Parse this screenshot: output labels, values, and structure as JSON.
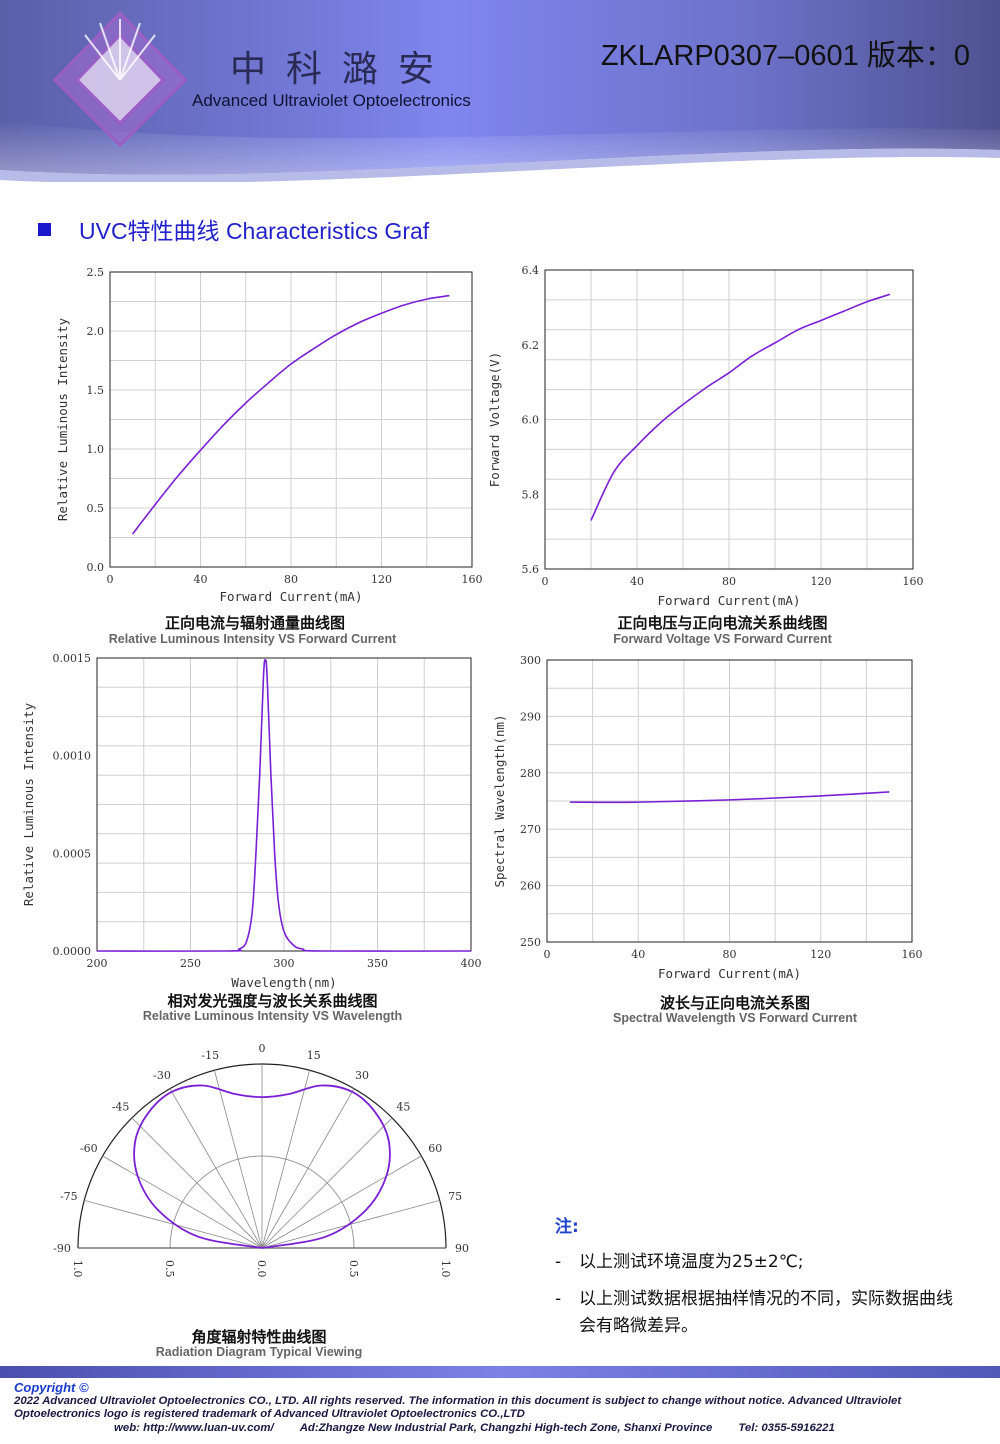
{
  "header": {
    "brand_cn": "中科潞安",
    "brand_en": "Advanced Ultraviolet Optoelectronics",
    "doc_no": "ZKLARP0307–0601 版本：0"
  },
  "section": {
    "title": "UVC特性曲线 Characteristics Graf"
  },
  "colors": {
    "curve": "#7a1fd6",
    "grid": "#d0d0d0",
    "accent": "#1a1acc"
  },
  "charts": {
    "c1": {
      "title_cn": "正向电流与辐射通量曲线图",
      "title_en": "Relative Luminous Intensity VS Forward Current"
    },
    "c2": {
      "title_cn": "正向电压与正向电流关系曲线图",
      "title_en": "Forward Voltage VS Forward Current"
    },
    "c3": {
      "title_cn": "相对发光强度与波长关系曲线图",
      "title_en": "Relative Luminous Intensity VS Wavelength"
    },
    "c4": {
      "title_cn": "波长与正向电流关系图",
      "title_en": "Spectral Wavelength VS Forward Current"
    },
    "c5": {
      "title_cn": "角度辐射特性曲线图",
      "title_en": "Radiation Diagram Typical Viewing"
    }
  },
  "chart_data": [
    {
      "id": "c1",
      "type": "line",
      "xlabel": "Forward Current(mA)",
      "ylabel": "Relative Luminous Intensity",
      "xlim": [
        0,
        160
      ],
      "ylim": [
        0,
        2.5
      ],
      "grid": true,
      "xticks": [
        "0",
        "40",
        "80",
        "120",
        "160"
      ],
      "yticks": [
        "0.0",
        "0.5",
        "1.0",
        "1.5",
        "2.0",
        "2.5"
      ],
      "x": [
        10,
        20,
        30,
        40,
        50,
        60,
        70,
        80,
        90,
        100,
        110,
        120,
        130,
        140,
        150
      ],
      "y": [
        0.28,
        0.53,
        0.77,
        0.99,
        1.2,
        1.39,
        1.56,
        1.72,
        1.85,
        1.97,
        2.07,
        2.15,
        2.22,
        2.27,
        2.3
      ]
    },
    {
      "id": "c2",
      "type": "line",
      "xlabel": "Forward Current(mA)",
      "ylabel": "Forward Voltage(V)",
      "xlim": [
        0,
        160
      ],
      "ylim": [
        5.6,
        6.4
      ],
      "grid": true,
      "xticks": [
        "0",
        "40",
        "80",
        "120",
        "160"
      ],
      "yticks": [
        "5.6",
        "5.8",
        "6.0",
        "6.2",
        "6.4"
      ],
      "x": [
        20,
        30,
        40,
        50,
        60,
        70,
        80,
        90,
        100,
        110,
        120,
        130,
        140,
        150
      ],
      "y": [
        5.73,
        5.86,
        5.93,
        5.99,
        6.04,
        6.085,
        6.125,
        6.17,
        6.205,
        6.24,
        6.265,
        6.29,
        6.315,
        6.335
      ]
    },
    {
      "id": "c3",
      "type": "line",
      "xlabel": "Wavelength(nm)",
      "ylabel": "Relative Luminous Intensity",
      "xlim": [
        200,
        400
      ],
      "ylim": [
        0,
        0.0015
      ],
      "grid": true,
      "xticks": [
        "200",
        "250",
        "300",
        "350",
        "400"
      ],
      "yticks": [
        "0.0000",
        "0.0005",
        "0.0010",
        "0.0015"
      ],
      "x": [
        200,
        270,
        276,
        280,
        283,
        285,
        287,
        289,
        290,
        291,
        293,
        295,
        297,
        300,
        305,
        310,
        320,
        400
      ],
      "y": [
        0,
        0,
        1e-05,
        5e-05,
        0.0002,
        0.0005,
        0.0009,
        0.0014,
        0.00149,
        0.0014,
        0.0009,
        0.0005,
        0.00025,
        0.0001,
        3e-05,
        1e-05,
        0,
        0
      ]
    },
    {
      "id": "c4",
      "type": "line",
      "xlabel": "Forward Current(mA)",
      "ylabel": "Spectral Wavelength(nm)",
      "xlim": [
        0,
        160
      ],
      "ylim": [
        250,
        300
      ],
      "grid": true,
      "xticks": [
        "0",
        "40",
        "80",
        "120",
        "160"
      ],
      "yticks": [
        "250",
        "260",
        "270",
        "280",
        "290",
        "300"
      ],
      "x": [
        10,
        40,
        80,
        120,
        150
      ],
      "y": [
        274.8,
        274.8,
        275.2,
        275.9,
        276.6
      ]
    },
    {
      "id": "c5",
      "type": "polar",
      "angle_ticks": [
        "-90",
        "-75",
        "-60",
        "-45",
        "-30",
        "-15",
        "0",
        "15",
        "30",
        "45",
        "60",
        "75",
        "90"
      ],
      "radial_ticks": [
        "1.0",
        "0.5",
        "0.0",
        "0.5",
        "1.0"
      ],
      "angles": [
        -90,
        -80,
        -70,
        -60,
        -50,
        -40,
        -30,
        -20,
        -10,
        0,
        10,
        20,
        30,
        40,
        50,
        60,
        70,
        80,
        90
      ],
      "r": [
        0.0,
        0.35,
        0.6,
        0.78,
        0.9,
        0.96,
        0.98,
        0.94,
        0.85,
        0.82,
        0.85,
        0.94,
        0.98,
        0.96,
        0.9,
        0.78,
        0.6,
        0.35,
        0.0
      ]
    }
  ],
  "notes": {
    "heading": "注:",
    "items": [
      "以上测试环境温度为25±2℃;",
      "以上测试数据根据抽样情况的不同，实际数据曲线会有略微差异。"
    ],
    "bullet": "-"
  },
  "footer": {
    "copyright": "Copyright ©",
    "text": "2022 Advanced Ultraviolet Optoelectronics CO., LTD. All rights reserved. The information in this document is subject to change without notice. Advanced Ultraviolet Optoelectronics logo is registered trademark of Advanced Ultraviolet Optoelectronics CO.,LTD",
    "web": "web: http://www.luan-uv.com/",
    "address": "Ad:Zhangze New Industrial Park, Changzhi High-tech Zone, Shanxi Province",
    "tel": "Tel:  0355-5916221"
  }
}
